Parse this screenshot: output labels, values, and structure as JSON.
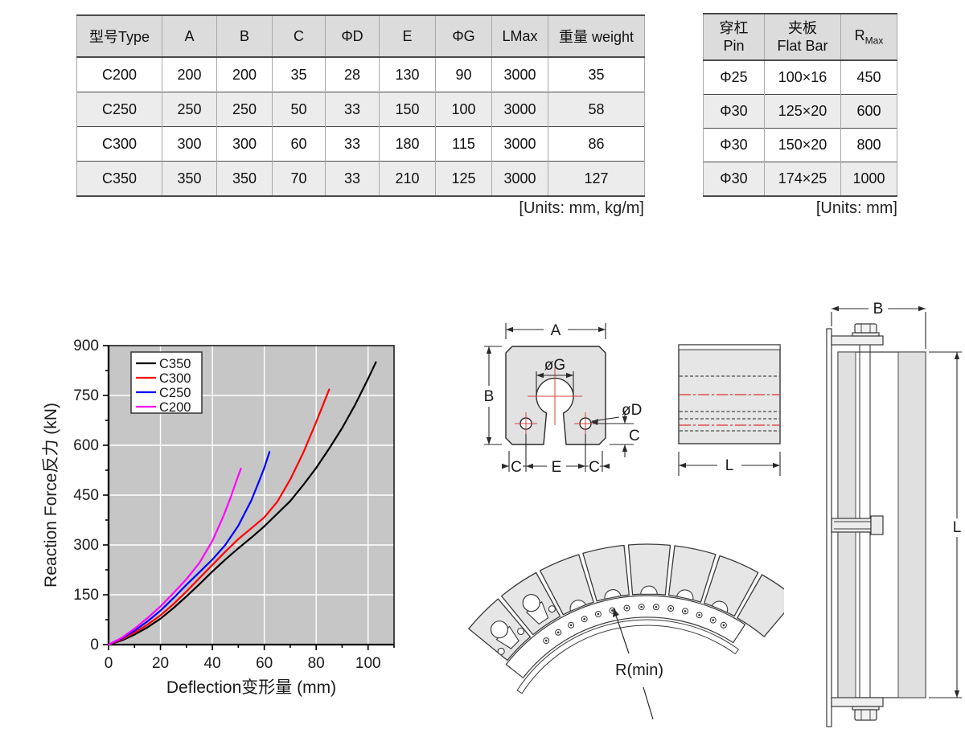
{
  "page": {
    "background": "#ffffff"
  },
  "spec_table": {
    "columns": [
      "型号Type",
      "A",
      "B",
      "C",
      "ΦD",
      "E",
      "ΦG",
      "LMax",
      "重量 weight"
    ],
    "rows": [
      [
        "C200",
        "200",
        "200",
        "35",
        "28",
        "130",
        "90",
        "3000",
        "35"
      ],
      [
        "C250",
        "250",
        "250",
        "50",
        "33",
        "150",
        "100",
        "3000",
        "58"
      ],
      [
        "C300",
        "300",
        "300",
        "60",
        "33",
        "180",
        "115",
        "3000",
        "86"
      ],
      [
        "C350",
        "350",
        "350",
        "70",
        "33",
        "210",
        "125",
        "3000",
        "127"
      ]
    ],
    "units_note": "[Units: mm, kg/m]"
  },
  "accessory_table": {
    "columns": [
      {
        "line1": "穿杠",
        "line2": "Pin"
      },
      {
        "line1": "夹板",
        "line2": "Flat Bar"
      },
      {
        "base": "R",
        "sub": "Max"
      }
    ],
    "rows": [
      [
        "Φ25",
        "100×16",
        "450"
      ],
      [
        "Φ30",
        "125×20",
        "600"
      ],
      [
        "Φ30",
        "150×20",
        "800"
      ],
      [
        "Φ30",
        "174×25",
        "1000"
      ]
    ],
    "units_note": "[Units: mm]"
  },
  "chart_data": {
    "type": "line",
    "title": "",
    "xlabel": "Deflection变形量 (mm)",
    "ylabel": "Reaction Force反力 (kN)",
    "xlim": [
      0,
      110
    ],
    "ylim": [
      0,
      900
    ],
    "x_major_ticks": [
      0,
      20,
      40,
      60,
      80,
      100
    ],
    "y_major_ticks": [
      0,
      150,
      300,
      450,
      600,
      750,
      900
    ],
    "x_minor_step": 10,
    "y_minor_step": 75,
    "grid": true,
    "grid_color": "#ffffff",
    "plot_background": "#c6c6c6",
    "legend_position": "top-left",
    "series": [
      {
        "name": "C350",
        "color": "#000000",
        "points": [
          [
            0,
            0
          ],
          [
            5,
            12
          ],
          [
            10,
            30
          ],
          [
            15,
            52
          ],
          [
            20,
            78
          ],
          [
            25,
            110
          ],
          [
            30,
            145
          ],
          [
            35,
            182
          ],
          [
            40,
            220
          ],
          [
            45,
            256
          ],
          [
            50,
            290
          ],
          [
            55,
            322
          ],
          [
            60,
            356
          ],
          [
            65,
            394
          ],
          [
            70,
            432
          ],
          [
            75,
            480
          ],
          [
            80,
            532
          ],
          [
            85,
            590
          ],
          [
            90,
            652
          ],
          [
            95,
            722
          ],
          [
            100,
            800
          ],
          [
            103,
            850
          ]
        ]
      },
      {
        "name": "C300",
        "color": "#ff0000",
        "points": [
          [
            0,
            0
          ],
          [
            5,
            15
          ],
          [
            10,
            36
          ],
          [
            15,
            60
          ],
          [
            20,
            88
          ],
          [
            25,
            122
          ],
          [
            30,
            160
          ],
          [
            35,
            200
          ],
          [
            40,
            240
          ],
          [
            45,
            280
          ],
          [
            50,
            318
          ],
          [
            55,
            350
          ],
          [
            60,
            383
          ],
          [
            65,
            430
          ],
          [
            70,
            497
          ],
          [
            75,
            577
          ],
          [
            80,
            670
          ],
          [
            85,
            768
          ]
        ]
      },
      {
        "name": "C250",
        "color": "#0000ff",
        "points": [
          [
            0,
            0
          ],
          [
            5,
            18
          ],
          [
            10,
            42
          ],
          [
            15,
            70
          ],
          [
            20,
            102
          ],
          [
            25,
            140
          ],
          [
            30,
            180
          ],
          [
            35,
            218
          ],
          [
            40,
            256
          ],
          [
            45,
            300
          ],
          [
            50,
            358
          ],
          [
            55,
            434
          ],
          [
            58,
            492
          ],
          [
            60,
            532
          ],
          [
            62,
            580
          ]
        ]
      },
      {
        "name": "C200",
        "color": "#ff00ff",
        "points": [
          [
            0,
            0
          ],
          [
            5,
            20
          ],
          [
            10,
            48
          ],
          [
            15,
            80
          ],
          [
            20,
            115
          ],
          [
            25,
            155
          ],
          [
            30,
            197
          ],
          [
            35,
            246
          ],
          [
            40,
            312
          ],
          [
            44,
            382
          ],
          [
            47,
            442
          ],
          [
            49,
            487
          ],
          [
            51,
            530
          ]
        ]
      }
    ]
  },
  "diagrams": {
    "cross_section": {
      "labels": {
        "a": "A",
        "b": "B",
        "dia_g": "øG",
        "dia_d": "øD",
        "c_right": "C",
        "c_bottom_left": "C",
        "e": "E",
        "c_bottom_right": "C"
      }
    },
    "side_view": {
      "labels": {
        "l": "L"
      }
    },
    "elevation": {
      "labels": {
        "b": "B",
        "l": "L"
      }
    },
    "curved": {
      "labels": {
        "r_min": "R(min)"
      }
    }
  }
}
